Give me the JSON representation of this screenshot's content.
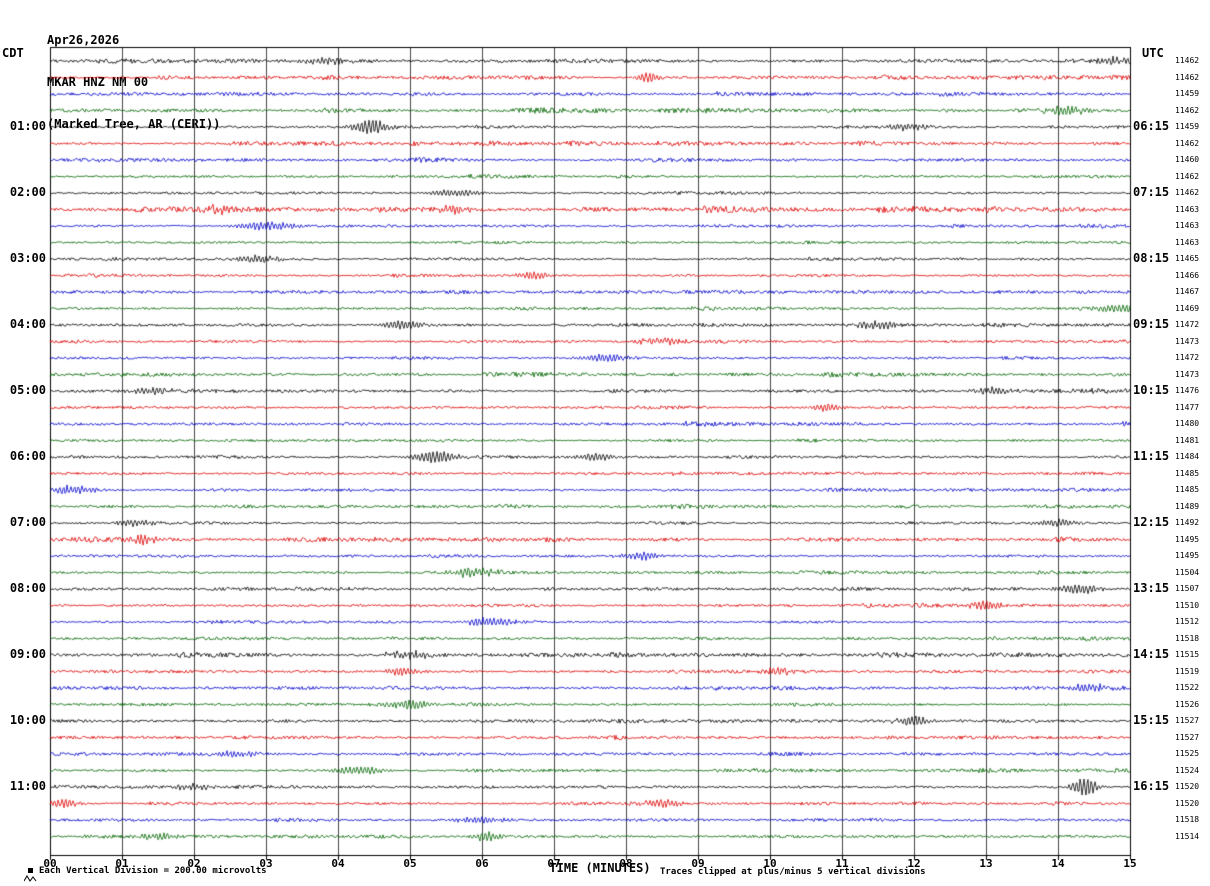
{
  "header": {
    "date": "Apr26,2026",
    "station": "MKAR HNZ NM 00",
    "location": "(Marked Tree, AR (CERI))"
  },
  "axes": {
    "left_label": "CDT",
    "right_label": "UTC",
    "x_title": "TIME (MINUTES)",
    "x_ticks": [
      "00",
      "01",
      "02",
      "03",
      "04",
      "05",
      "06",
      "07",
      "08",
      "09",
      "10",
      "11",
      "12",
      "13",
      "14",
      "15"
    ]
  },
  "footer": {
    "left": "Each Vertical Division =  200.00 microvolts",
    "right": "Traces clipped at plus/minus 5 vertical divisions"
  },
  "chart_data": {
    "type": "line",
    "subtype": "helicorder-seismogram",
    "title": "MKAR HNZ NM 00 (Marked Tree, AR (CERI)) Apr26,2026",
    "xlabel": "TIME (MINUTES)",
    "x_range": [
      0,
      15
    ],
    "minutes_per_row": 15,
    "rows_count": 48,
    "clip_divisions": 5,
    "microvolts_per_division": 200,
    "seed": 20260426,
    "colors": {
      "black": "#000000",
      "red": "#dd0000",
      "blue": "#0000cc",
      "green": "#006600"
    },
    "rows": [
      {
        "c": "black",
        "left": "",
        "right": "",
        "count": 11462
      },
      {
        "c": "red",
        "left": "",
        "right": "",
        "count": 11462
      },
      {
        "c": "blue",
        "left": "",
        "right": "",
        "count": 11459
      },
      {
        "c": "green",
        "left": "",
        "right": "",
        "count": 11462
      },
      {
        "c": "black",
        "left": "01:00",
        "right": "06:15",
        "count": 11459
      },
      {
        "c": "red",
        "left": "",
        "right": "",
        "count": 11462
      },
      {
        "c": "blue",
        "left": "",
        "right": "",
        "count": 11460
      },
      {
        "c": "green",
        "left": "",
        "right": "",
        "count": 11462
      },
      {
        "c": "black",
        "left": "02:00",
        "right": "07:15",
        "count": 11462
      },
      {
        "c": "red",
        "left": "",
        "right": "",
        "count": 11463
      },
      {
        "c": "blue",
        "left": "",
        "right": "",
        "count": 11463
      },
      {
        "c": "green",
        "left": "",
        "right": "",
        "count": 11463
      },
      {
        "c": "black",
        "left": "03:00",
        "right": "08:15",
        "count": 11465
      },
      {
        "c": "red",
        "left": "",
        "right": "",
        "count": 11466
      },
      {
        "c": "blue",
        "left": "",
        "right": "",
        "count": 11467
      },
      {
        "c": "green",
        "left": "",
        "right": "",
        "count": 11469
      },
      {
        "c": "black",
        "left": "04:00",
        "right": "09:15",
        "count": 11472
      },
      {
        "c": "red",
        "left": "",
        "right": "",
        "count": 11473
      },
      {
        "c": "blue",
        "left": "",
        "right": "",
        "count": 11472
      },
      {
        "c": "green",
        "left": "",
        "right": "",
        "count": 11473
      },
      {
        "c": "black",
        "left": "05:00",
        "right": "10:15",
        "count": 11476
      },
      {
        "c": "red",
        "left": "",
        "right": "",
        "count": 11477
      },
      {
        "c": "blue",
        "left": "",
        "right": "",
        "count": 11480
      },
      {
        "c": "green",
        "left": "",
        "right": "",
        "count": 11481
      },
      {
        "c": "black",
        "left": "06:00",
        "right": "11:15",
        "count": 11484
      },
      {
        "c": "red",
        "left": "",
        "right": "",
        "count": 11485
      },
      {
        "c": "blue",
        "left": "",
        "right": "",
        "count": 11485
      },
      {
        "c": "green",
        "left": "",
        "right": "",
        "count": 11489
      },
      {
        "c": "black",
        "left": "07:00",
        "right": "12:15",
        "count": 11492
      },
      {
        "c": "red",
        "left": "",
        "right": "",
        "count": 11495
      },
      {
        "c": "blue",
        "left": "",
        "right": "",
        "count": 11495
      },
      {
        "c": "green",
        "left": "",
        "right": "",
        "count": 11504
      },
      {
        "c": "black",
        "left": "08:00",
        "right": "13:15",
        "count": 11507
      },
      {
        "c": "red",
        "left": "",
        "right": "",
        "count": 11510
      },
      {
        "c": "blue",
        "left": "",
        "right": "",
        "count": 11512
      },
      {
        "c": "green",
        "left": "",
        "right": "",
        "count": 11518
      },
      {
        "c": "black",
        "left": "09:00",
        "right": "14:15",
        "count": 11515
      },
      {
        "c": "red",
        "left": "",
        "right": "",
        "count": 11519
      },
      {
        "c": "blue",
        "left": "",
        "right": "",
        "count": 11522
      },
      {
        "c": "green",
        "left": "",
        "right": "",
        "count": 11526
      },
      {
        "c": "black",
        "left": "10:00",
        "right": "15:15",
        "count": 11527
      },
      {
        "c": "red",
        "left": "",
        "right": "",
        "count": 11527
      },
      {
        "c": "blue",
        "left": "",
        "right": "",
        "count": 11525
      },
      {
        "c": "green",
        "left": "",
        "right": "",
        "count": 11524
      },
      {
        "c": "black",
        "left": "11:00",
        "right": "16:15",
        "count": 11520
      },
      {
        "c": "red",
        "left": "",
        "right": "",
        "count": 11520
      },
      {
        "c": "blue",
        "left": "",
        "right": "",
        "count": 11518
      },
      {
        "c": "green",
        "left": "",
        "right": "",
        "count": 11514
      }
    ],
    "events": [
      {
        "row": 0,
        "minute": 3.8,
        "amplitude": 2.5,
        "width": 0.3
      },
      {
        "row": 0,
        "minute": 14.8,
        "amplitude": 3,
        "width": 0.2
      },
      {
        "row": 1,
        "minute": 8.3,
        "amplitude": 4.5,
        "width": 0.12
      },
      {
        "row": 3,
        "minute": 14.1,
        "amplitude": 3.5,
        "width": 0.25
      },
      {
        "row": 4,
        "minute": 4.45,
        "amplitude": 6.5,
        "width": 0.18
      },
      {
        "row": 4,
        "minute": 11.9,
        "amplitude": 3,
        "width": 0.2
      },
      {
        "row": 8,
        "minute": 5.6,
        "amplitude": 3,
        "width": 0.25
      },
      {
        "row": 9,
        "minute": 2.3,
        "amplitude": 3,
        "width": 0.15
      },
      {
        "row": 9,
        "minute": 5.6,
        "amplitude": 3.5,
        "width": 0.15
      },
      {
        "row": 10,
        "minute": 3.0,
        "amplitude": 4,
        "width": 0.3
      },
      {
        "row": 12,
        "minute": 2.9,
        "amplitude": 3.5,
        "width": 0.2
      },
      {
        "row": 13,
        "minute": 6.7,
        "amplitude": 3,
        "width": 0.2
      },
      {
        "row": 15,
        "minute": 14.9,
        "amplitude": 3.5,
        "width": 0.3
      },
      {
        "row": 16,
        "minute": 4.9,
        "amplitude": 4,
        "width": 0.2
      },
      {
        "row": 16,
        "minute": 11.5,
        "amplitude": 3.5,
        "width": 0.2
      },
      {
        "row": 17,
        "minute": 8.5,
        "amplitude": 3,
        "width": 0.2
      },
      {
        "row": 18,
        "minute": 7.7,
        "amplitude": 3.5,
        "width": 0.25
      },
      {
        "row": 20,
        "minute": 1.4,
        "amplitude": 3,
        "width": 0.2
      },
      {
        "row": 20,
        "minute": 13.1,
        "amplitude": 3,
        "width": 0.2
      },
      {
        "row": 21,
        "minute": 10.8,
        "amplitude": 3.5,
        "width": 0.15
      },
      {
        "row": 24,
        "minute": 5.35,
        "amplitude": 6,
        "width": 0.22
      },
      {
        "row": 24,
        "minute": 7.6,
        "amplitude": 3.5,
        "width": 0.2
      },
      {
        "row": 26,
        "minute": 0.3,
        "amplitude": 4,
        "width": 0.2
      },
      {
        "row": 28,
        "minute": 1.2,
        "amplitude": 3,
        "width": 0.2
      },
      {
        "row": 28,
        "minute": 14.0,
        "amplitude": 3.5,
        "width": 0.2
      },
      {
        "row": 29,
        "minute": 1.3,
        "amplitude": 5,
        "width": 0.1
      },
      {
        "row": 30,
        "minute": 8.2,
        "amplitude": 3.5,
        "width": 0.2
      },
      {
        "row": 31,
        "minute": 5.9,
        "amplitude": 3.5,
        "width": 0.25
      },
      {
        "row": 32,
        "minute": 14.3,
        "amplitude": 4.5,
        "width": 0.2
      },
      {
        "row": 33,
        "minute": 13.0,
        "amplitude": 4.5,
        "width": 0.15
      },
      {
        "row": 34,
        "minute": 6.1,
        "amplitude": 4,
        "width": 0.25
      },
      {
        "row": 36,
        "minute": 5.0,
        "amplitude": 3.5,
        "width": 0.2
      },
      {
        "row": 37,
        "minute": 4.9,
        "amplitude": 4,
        "width": 0.15
      },
      {
        "row": 37,
        "minute": 10.1,
        "amplitude": 3.5,
        "width": 0.15
      },
      {
        "row": 38,
        "minute": 14.4,
        "amplitude": 3.5,
        "width": 0.2
      },
      {
        "row": 39,
        "minute": 5.0,
        "amplitude": 4,
        "width": 0.2
      },
      {
        "row": 40,
        "minute": 12.0,
        "amplitude": 4,
        "width": 0.2
      },
      {
        "row": 42,
        "minute": 2.6,
        "amplitude": 3,
        "width": 0.2
      },
      {
        "row": 43,
        "minute": 4.3,
        "amplitude": 3.5,
        "width": 0.25
      },
      {
        "row": 44,
        "minute": 14.37,
        "amplitude": 9,
        "width": 0.12
      },
      {
        "row": 44,
        "minute": 2.0,
        "amplitude": 3,
        "width": 0.2
      },
      {
        "row": 45,
        "minute": 0.2,
        "amplitude": 4,
        "width": 0.15
      },
      {
        "row": 45,
        "minute": 8.5,
        "amplitude": 3.5,
        "width": 0.2
      },
      {
        "row": 46,
        "minute": 6.0,
        "amplitude": 3,
        "width": 0.25
      },
      {
        "row": 47,
        "minute": 6.05,
        "amplitude": 4.5,
        "width": 0.12
      },
      {
        "row": 47,
        "minute": 1.5,
        "amplitude": 3,
        "width": 0.2
      }
    ]
  }
}
